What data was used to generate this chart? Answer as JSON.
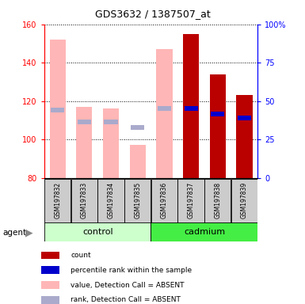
{
  "title": "GDS3632 / 1387507_at",
  "samples": [
    "GSM197832",
    "GSM197833",
    "GSM197834",
    "GSM197835",
    "GSM197836",
    "GSM197837",
    "GSM197838",
    "GSM197839"
  ],
  "ylim": [
    80,
    160
  ],
  "yticks_left": [
    80,
    100,
    120,
    140,
    160
  ],
  "right_tick_positions": [
    80,
    100,
    120,
    140,
    160
  ],
  "right_tick_labels": [
    "0",
    "25",
    "50",
    "75",
    "100%"
  ],
  "bar_width": 0.6,
  "value_absent": [
    152,
    117,
    116,
    97,
    147,
    null,
    null,
    null
  ],
  "rank_absent": [
    115,
    109,
    109,
    106,
    116,
    null,
    null,
    null
  ],
  "value_present": [
    null,
    null,
    null,
    null,
    null,
    155,
    134,
    123
  ],
  "rank_blue": [
    null,
    null,
    null,
    null,
    null,
    116,
    113,
    111
  ],
  "colors": {
    "value_absent": "#FFB6B6",
    "rank_absent": "#AAAACC",
    "value_present": "#BB0000",
    "rank_blue": "#0000CC",
    "control_light": "#CCFFCC",
    "cadmium_green": "#44EE44",
    "sample_bg": "#CCCCCC"
  },
  "legend_items": [
    {
      "label": "count",
      "color": "#BB0000"
    },
    {
      "label": "percentile rank within the sample",
      "color": "#0000CC"
    },
    {
      "label": "value, Detection Call = ABSENT",
      "color": "#FFB6B6"
    },
    {
      "label": "rank, Detection Call = ABSENT",
      "color": "#AAAACC"
    }
  ]
}
